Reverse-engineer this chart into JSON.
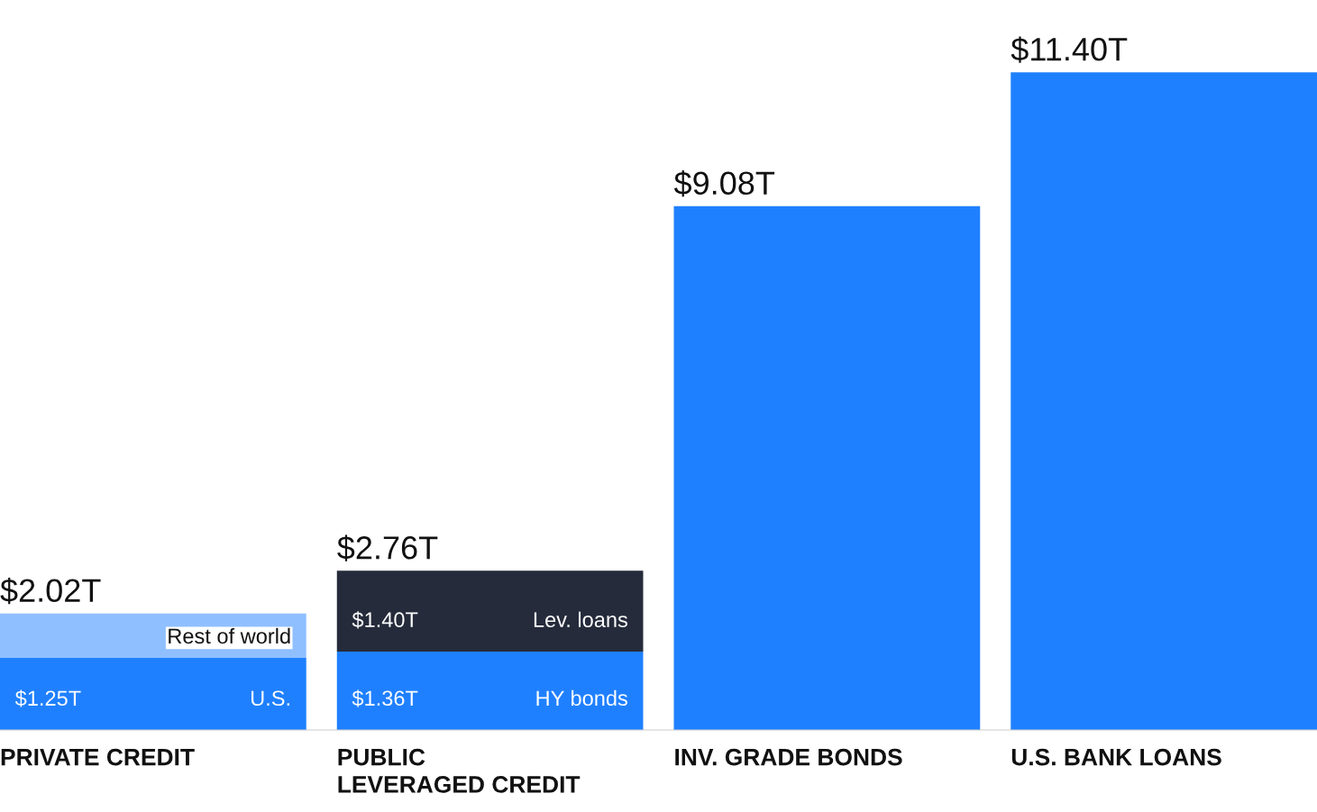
{
  "chart_data": {
    "type": "bar",
    "stacked": true,
    "categories": [
      "PRIVATE CREDIT",
      "PUBLIC\nLEVERAGED CREDIT",
      "INV. GRADE BONDS",
      "U.S. BANK LOANS"
    ],
    "series": [
      {
        "name": "U.S.",
        "color": "#1f80ff",
        "values": [
          1.25,
          null,
          null,
          null
        ],
        "value_labels": [
          "$1.25T",
          null,
          null,
          null
        ]
      },
      {
        "name": "HY bonds",
        "color": "#1f80ff",
        "values": [
          null,
          1.36,
          null,
          null
        ],
        "value_labels": [
          null,
          "$1.36T",
          null,
          null
        ]
      },
      {
        "color": "#1f80ff",
        "values": [
          null,
          null,
          9.08,
          11.4
        ]
      },
      {
        "name": "Rest of world",
        "color": "#8fbfff",
        "values": [
          0.77,
          null,
          null,
          null
        ]
      },
      {
        "name": "Lev. loans",
        "color": "#252b3b",
        "values": [
          null,
          1.4,
          null,
          null
        ],
        "value_labels": [
          null,
          "$1.40T",
          null,
          null
        ]
      }
    ],
    "annotations": [
      {
        "text": "$2.02T",
        "x": "PRIVATE CREDIT",
        "y": 2.02
      },
      {
        "text": "$2.76T",
        "x": "PUBLIC\nLEVERAGED CREDIT",
        "y": 2.76
      },
      {
        "text": "$9.08T",
        "x": "INV. GRADE BONDS",
        "y": 9.08
      },
      {
        "text": "$11.40T",
        "x": "U.S. BANK LOANS",
        "y": 11.4
      }
    ],
    "legend": false
  }
}
